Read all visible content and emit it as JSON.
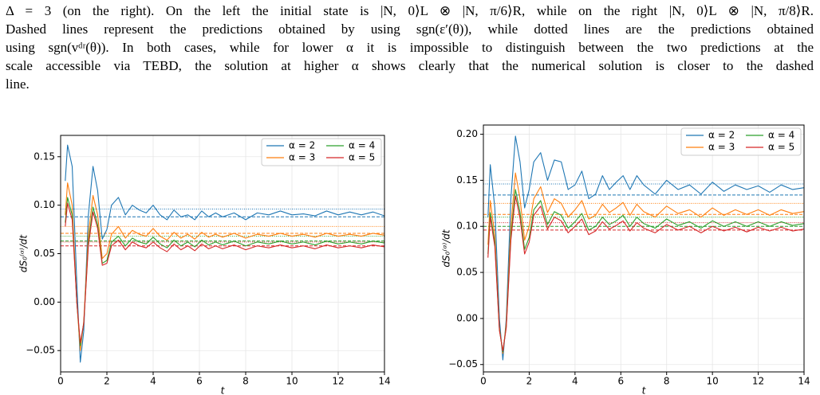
{
  "text": {
    "paragraph_lines": [
      "Δ = 3 (on the right). On the left the initial state is |N, 0⟩L ⊗ |N, π/6⟩R, while on the right |N, 0⟩L ⊗ |N, π/8⟩R.",
      "Dashed lines represent the predictions obtained by using sgn(ε′(θ)), while dotted lines are the predictions obtained",
      "using sgn(vᵈʳ(θ)). In both cases, while for lower α it is impossible to distinguish between the two predictions at the",
      "scale accessible via TEBD, the solution at higher α shows clearly that the numerical solution is closer to the dashed",
      "line."
    ]
  },
  "chart_data": [
    {
      "type": "line",
      "xlabel": "t",
      "ylabel": "dS₀⁽ᵅ⁾/dt",
      "grid": true,
      "legend": "upper right",
      "xlim": [
        0,
        14
      ],
      "xticks": [
        0,
        2,
        4,
        6,
        8,
        10,
        12,
        14
      ],
      "ylim": [
        -0.072,
        0.172
      ],
      "yticks": [
        {
          "value": -0.05,
          "label": "−0.05"
        },
        {
          "value": 0,
          "label": "0.00"
        },
        {
          "value": 0.05,
          "label": "0.05"
        },
        {
          "value": 0.1,
          "label": "0.10"
        },
        {
          "value": 0.15,
          "label": "0.15"
        }
      ],
      "x": [
        0.2,
        0.3,
        0.5,
        0.7,
        0.85,
        1.0,
        1.2,
        1.4,
        1.6,
        1.8,
        2.0,
        2.2,
        2.5,
        2.8,
        3.1,
        3.4,
        3.7,
        4.0,
        4.3,
        4.6,
        4.9,
        5.2,
        5.5,
        5.8,
        6.1,
        6.4,
        6.7,
        7.0,
        7.5,
        8,
        8.5,
        9,
        9.5,
        10,
        10.5,
        11,
        11.5,
        12,
        12.5,
        13,
        13.5,
        14
      ],
      "series": [
        {
          "name": "α = 2",
          "color": "#1f77b4",
          "dashed_level": 0.088,
          "dotted_level": 0.096,
          "values": [
            0.125,
            0.162,
            0.14,
            0.02,
            -0.062,
            -0.03,
            0.09,
            0.14,
            0.115,
            0.065,
            0.075,
            0.1,
            0.108,
            0.09,
            0.1,
            0.095,
            0.092,
            0.1,
            0.09,
            0.085,
            0.095,
            0.088,
            0.09,
            0.085,
            0.094,
            0.088,
            0.092,
            0.088,
            0.092,
            0.085,
            0.092,
            0.09,
            0.094,
            0.09,
            0.091,
            0.089,
            0.094,
            0.09,
            0.093,
            0.09,
            0.093,
            0.089
          ]
        },
        {
          "name": "α = 3",
          "color": "#ff7f0e",
          "dashed_level": 0.071,
          "dotted_level": 0.078,
          "values": [
            0.09,
            0.123,
            0.1,
            0.0,
            -0.05,
            -0.02,
            0.07,
            0.11,
            0.09,
            0.045,
            0.05,
            0.07,
            0.078,
            0.066,
            0.074,
            0.07,
            0.068,
            0.076,
            0.068,
            0.064,
            0.072,
            0.066,
            0.07,
            0.065,
            0.072,
            0.067,
            0.07,
            0.067,
            0.071,
            0.066,
            0.07,
            0.068,
            0.071,
            0.068,
            0.07,
            0.067,
            0.071,
            0.068,
            0.07,
            0.068,
            0.071,
            0.069
          ]
        },
        {
          "name": "α = 4",
          "color": "#2ca02c",
          "dashed_level": 0.063,
          "dotted_level": 0.068,
          "values": [
            0.082,
            0.108,
            0.09,
            0.0,
            -0.045,
            -0.022,
            0.062,
            0.098,
            0.08,
            0.04,
            0.043,
            0.062,
            0.068,
            0.058,
            0.066,
            0.062,
            0.06,
            0.067,
            0.06,
            0.056,
            0.064,
            0.058,
            0.062,
            0.057,
            0.064,
            0.059,
            0.062,
            0.059,
            0.063,
            0.058,
            0.062,
            0.06,
            0.063,
            0.06,
            0.062,
            0.059,
            0.063,
            0.06,
            0.062,
            0.06,
            0.063,
            0.061
          ]
        },
        {
          "name": "α = 5",
          "color": "#d62728",
          "dashed_level": 0.058,
          "dotted_level": 0.062,
          "values": [
            0.078,
            0.102,
            0.085,
            0.0,
            -0.042,
            -0.022,
            0.058,
            0.093,
            0.076,
            0.038,
            0.04,
            0.058,
            0.064,
            0.054,
            0.062,
            0.058,
            0.056,
            0.062,
            0.056,
            0.052,
            0.06,
            0.054,
            0.058,
            0.053,
            0.06,
            0.055,
            0.058,
            0.055,
            0.059,
            0.054,
            0.058,
            0.056,
            0.059,
            0.056,
            0.058,
            0.055,
            0.059,
            0.056,
            0.058,
            0.056,
            0.059,
            0.057
          ]
        }
      ]
    },
    {
      "type": "line",
      "xlabel": "t",
      "ylabel": "dS₀⁽ᵅ⁾/dt",
      "grid": true,
      "legend": "upper right",
      "xlim": [
        0,
        14
      ],
      "xticks": [
        0,
        2,
        4,
        6,
        8,
        10,
        12,
        14
      ],
      "ylim": [
        -0.058,
        0.21
      ],
      "yticks": [
        {
          "value": -0.05,
          "label": "−0.05"
        },
        {
          "value": 0,
          "label": "0.00"
        },
        {
          "value": 0.05,
          "label": "0.05"
        },
        {
          "value": 0.1,
          "label": "0.10"
        },
        {
          "value": 0.15,
          "label": "0.15"
        },
        {
          "value": 0.2,
          "label": "0.20"
        }
      ],
      "x": [
        0.2,
        0.3,
        0.5,
        0.7,
        0.85,
        1.0,
        1.2,
        1.4,
        1.6,
        1.8,
        2.0,
        2.2,
        2.5,
        2.8,
        3.1,
        3.4,
        3.7,
        4.0,
        4.3,
        4.6,
        4.9,
        5.2,
        5.5,
        5.8,
        6.1,
        6.4,
        6.7,
        7.0,
        7.5,
        8,
        8.5,
        9,
        9.5,
        10,
        10.5,
        11,
        11.5,
        12,
        12.5,
        13,
        13.5,
        14
      ],
      "series": [
        {
          "name": "α = 2",
          "color": "#1f77b4",
          "dashed_level": 0.134,
          "dotted_level": 0.146,
          "values": [
            0.11,
            0.167,
            0.12,
            0.0,
            -0.045,
            0.0,
            0.13,
            0.198,
            0.17,
            0.12,
            0.14,
            0.17,
            0.18,
            0.15,
            0.172,
            0.17,
            0.14,
            0.145,
            0.16,
            0.13,
            0.135,
            0.155,
            0.14,
            0.148,
            0.155,
            0.14,
            0.155,
            0.145,
            0.135,
            0.15,
            0.14,
            0.145,
            0.135,
            0.148,
            0.138,
            0.145,
            0.14,
            0.144,
            0.137,
            0.145,
            0.14,
            0.142
          ]
        },
        {
          "name": "α = 3",
          "color": "#ff7f0e",
          "dashed_level": 0.113,
          "dotted_level": 0.125,
          "values": [
            0.08,
            0.128,
            0.09,
            -0.01,
            -0.038,
            -0.005,
            0.1,
            0.158,
            0.13,
            0.085,
            0.1,
            0.13,
            0.143,
            0.115,
            0.13,
            0.125,
            0.11,
            0.118,
            0.128,
            0.108,
            0.112,
            0.124,
            0.115,
            0.12,
            0.126,
            0.112,
            0.124,
            0.116,
            0.11,
            0.122,
            0.114,
            0.118,
            0.11,
            0.12,
            0.112,
            0.118,
            0.113,
            0.118,
            0.112,
            0.118,
            0.114,
            0.116
          ]
        },
        {
          "name": "α = 4",
          "color": "#2ca02c",
          "dashed_level": 0.1,
          "dotted_level": 0.11,
          "values": [
            0.07,
            0.115,
            0.082,
            -0.012,
            -0.036,
            -0.008,
            0.09,
            0.14,
            0.115,
            0.075,
            0.088,
            0.118,
            0.128,
            0.102,
            0.116,
            0.112,
            0.098,
            0.105,
            0.114,
            0.096,
            0.1,
            0.11,
            0.102,
            0.106,
            0.112,
            0.1,
            0.11,
            0.103,
            0.098,
            0.108,
            0.101,
            0.105,
            0.098,
            0.106,
            0.1,
            0.105,
            0.1,
            0.105,
            0.1,
            0.105,
            0.101,
            0.103
          ]
        },
        {
          "name": "α = 5",
          "color": "#d62728",
          "dashed_level": 0.096,
          "dotted_level": 0.104,
          "values": [
            0.066,
            0.11,
            0.078,
            -0.013,
            -0.035,
            -0.01,
            0.085,
            0.133,
            0.109,
            0.07,
            0.083,
            0.112,
            0.122,
            0.097,
            0.11,
            0.106,
            0.093,
            0.1,
            0.108,
            0.091,
            0.095,
            0.105,
            0.097,
            0.101,
            0.106,
            0.095,
            0.104,
            0.098,
            0.093,
            0.102,
            0.096,
            0.1,
            0.093,
            0.1,
            0.095,
            0.099,
            0.094,
            0.099,
            0.095,
            0.099,
            0.095,
            0.097
          ]
        }
      ]
    }
  ]
}
